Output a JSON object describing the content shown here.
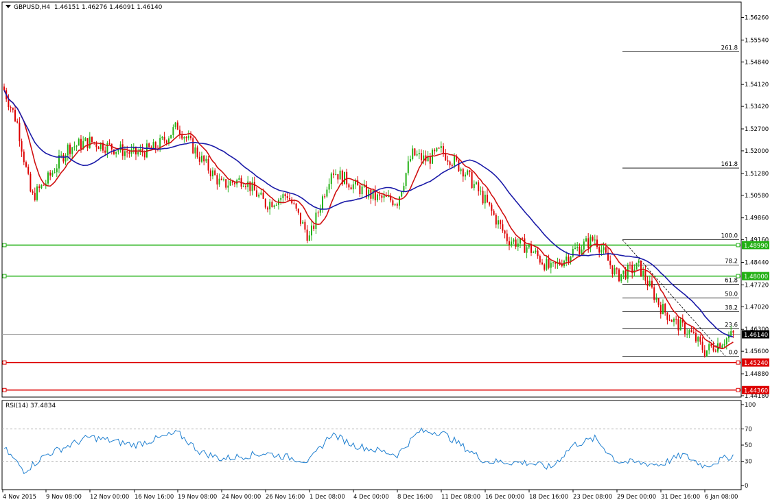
{
  "header": {
    "symbol": "GBPUSD,H4",
    "open": "1.46151",
    "high": "1.46276",
    "low": "1.46091",
    "close": "1.46140"
  },
  "rsi_header": {
    "label": "RSI(14) 37.4834"
  },
  "chart_data": [
    {
      "type": "candlestick",
      "symbol": "GBPUSD",
      "timeframe": "H4",
      "ylim": [
        1.4418,
        1.5662
      ],
      "y_ticks": [
        "1.56260",
        "1.55540",
        "1.54840",
        "1.54120",
        "1.53420",
        "1.52700",
        "1.52000",
        "1.51280",
        "1.50580",
        "1.49860",
        "1.49160",
        "1.48440",
        "1.47720",
        "1.47020",
        "1.46300",
        "1.45600",
        "1.44880",
        "1.44180"
      ],
      "x_ticks": [
        "4 Nov 2015",
        "9 Nov 08:00",
        "12 Nov 00:00",
        "16 Nov 16:00",
        "19 Nov 08:00",
        "24 Nov 00:00",
        "26 Nov 16:00",
        "1 Dec 08:00",
        "4 Dec 00:00",
        "8 Dec 16:00",
        "11 Dec 08:00",
        "16 Dec 00:00",
        "18 Dec 16:00",
        "23 Dec 08:00",
        "29 Dec 00:00",
        "31 Dec 16:00",
        "6 Jan 08:00"
      ],
      "current_price": "1.46140",
      "horizontal_levels": [
        {
          "price": "1.48990",
          "color": "#22b014"
        },
        {
          "price": "1.48000",
          "color": "#22b014"
        },
        {
          "price": "1.45240",
          "color": "#dd0000"
        },
        {
          "price": "1.44360",
          "color": "#dd0000"
        }
      ],
      "fibonacci": {
        "levels": [
          {
            "label": "261.8",
            "price": 1.5516
          },
          {
            "label": "161.8",
            "price": 1.5145
          },
          {
            "label": "100.0",
            "price": 1.4916
          },
          {
            "label": "78.2",
            "price": 1.4835
          },
          {
            "label": "61.8",
            "price": 1.4774
          },
          {
            "label": "50.0",
            "price": 1.473
          },
          {
            "label": "38.2",
            "price": 1.4686
          },
          {
            "label": "23.6",
            "price": 1.4632
          },
          {
            "label": "0.0",
            "price": 1.4544
          }
        ]
      },
      "series": [
        {
          "name": "",
          "color": "#d01010"
        },
        {
          "name": "",
          "color": "#1a1aa8"
        }
      ],
      "anchors": [
        {
          "x": "4 Nov 2015",
          "price": 1.5405
        },
        {
          "x": "5 Nov",
          "price": 1.529
        },
        {
          "x": "6 Nov",
          "price": 1.505
        },
        {
          "x": "9 Nov 08:00",
          "price": 1.51
        },
        {
          "x": "10 Nov",
          "price": 1.521
        },
        {
          "x": "12 Nov 00:00",
          "price": 1.523
        },
        {
          "x": "16 Nov 16:00",
          "price": 1.519
        },
        {
          "x": "17 Nov",
          "price": 1.521
        },
        {
          "x": "19 Nov 08:00",
          "price": 1.528
        },
        {
          "x": "20 Nov",
          "price": 1.518
        },
        {
          "x": "24 Nov 00:00",
          "price": 1.509
        },
        {
          "x": "25 Nov",
          "price": 1.511
        },
        {
          "x": "26 Nov 16:00",
          "price": 1.503
        },
        {
          "x": "27 Nov",
          "price": 1.506
        },
        {
          "x": "1 Dec 08:00",
          "price": 1.492
        },
        {
          "x": "2 Dec",
          "price": 1.514
        },
        {
          "x": "4 Dec 00:00",
          "price": 1.509
        },
        {
          "x": "7 Dec",
          "price": 1.505
        },
        {
          "x": "8 Dec 16:00",
          "price": 1.504
        },
        {
          "x": "9 Dec",
          "price": 1.519
        },
        {
          "x": "10 Dec",
          "price": 1.517
        },
        {
          "x": "11 Dec 08:00",
          "price": 1.52
        },
        {
          "x": "14 Dec",
          "price": 1.514
        },
        {
          "x": "16 Dec 00:00",
          "price": 1.504
        },
        {
          "x": "17 Dec",
          "price": 1.492
        },
        {
          "x": "18 Dec 16:00",
          "price": 1.489
        },
        {
          "x": "21 Dec",
          "price": 1.482
        },
        {
          "x": "23 Dec 08:00",
          "price": 1.488
        },
        {
          "x": "24 Dec",
          "price": 1.492
        },
        {
          "x": "29 Dec 00:00",
          "price": 1.48
        },
        {
          "x": "30 Dec",
          "price": 1.483
        },
        {
          "x": "31 Dec 16:00",
          "price": 1.47
        },
        {
          "x": "4 Jan",
          "price": 1.465
        },
        {
          "x": "5 Jan",
          "price": 1.462
        },
        {
          "x": "6 Jan 08:00",
          "price": 1.456
        },
        {
          "x": "7 Jan",
          "price": 1.4614
        }
      ]
    },
    {
      "type": "line",
      "name": "RSI(14)",
      "value": "37.4834",
      "ylim": [
        0,
        100
      ],
      "y_ticks": [
        "100",
        "70",
        "50",
        "30",
        "0"
      ],
      "color": "#1e7fd0",
      "anchors": [
        {
          "x": "4 Nov 2015",
          "value": 48
        },
        {
          "x": "6 Nov",
          "value": 18
        },
        {
          "x": "9 Nov 08:00",
          "value": 38
        },
        {
          "x": "12 Nov 00:00",
          "value": 60
        },
        {
          "x": "16 Nov 16:00",
          "value": 50
        },
        {
          "x": "19 Nov 08:00",
          "value": 65
        },
        {
          "x": "20 Nov",
          "value": 42
        },
        {
          "x": "24 Nov 00:00",
          "value": 33
        },
        {
          "x": "26 Nov 16:00",
          "value": 40
        },
        {
          "x": "1 Dec 08:00",
          "value": 30
        },
        {
          "x": "2 Dec",
          "value": 64
        },
        {
          "x": "4 Dec 00:00",
          "value": 50
        },
        {
          "x": "8 Dec 16:00",
          "value": 38
        },
        {
          "x": "9 Dec",
          "value": 67
        },
        {
          "x": "11 Dec 08:00",
          "value": 66
        },
        {
          "x": "16 Dec 00:00",
          "value": 30
        },
        {
          "x": "18 Dec 16:00",
          "value": 28
        },
        {
          "x": "21 Dec",
          "value": 22
        },
        {
          "x": "23 Dec 08:00",
          "value": 50
        },
        {
          "x": "24 Dec",
          "value": 58
        },
        {
          "x": "29 Dec 00:00",
          "value": 30
        },
        {
          "x": "31 Dec 16:00",
          "value": 26
        },
        {
          "x": "4 Jan",
          "value": 38
        },
        {
          "x": "6 Jan 08:00",
          "value": 24
        },
        {
          "x": "7 Jan",
          "value": 37.5
        }
      ]
    }
  ]
}
